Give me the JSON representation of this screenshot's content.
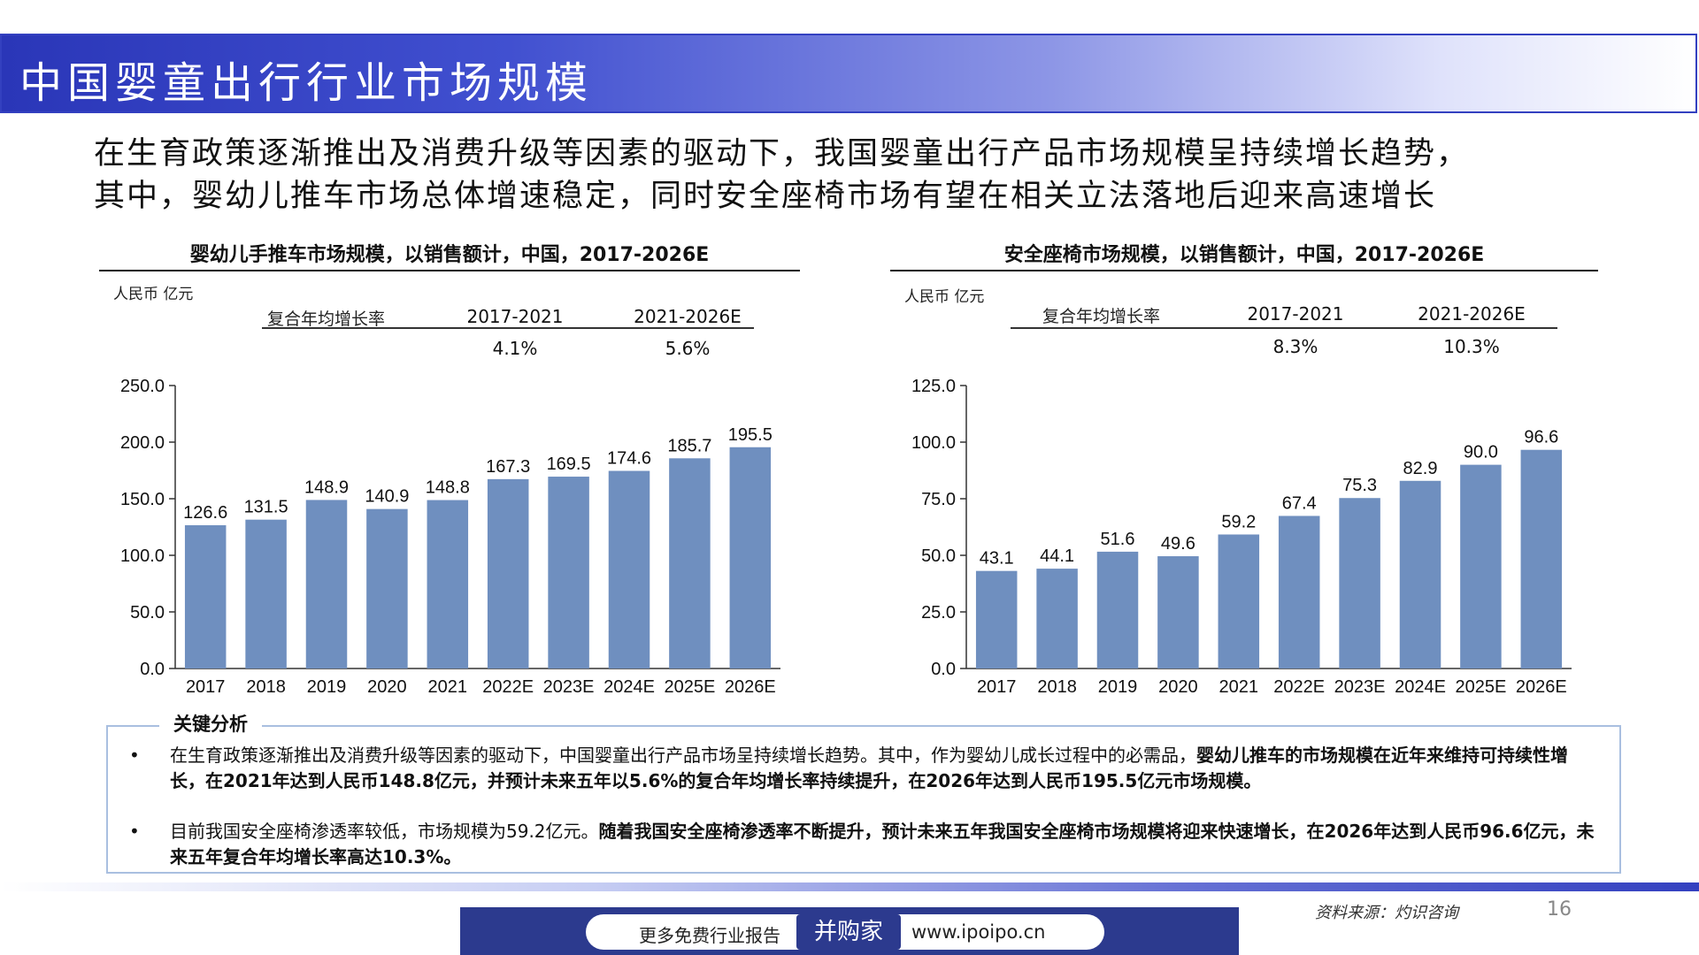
{
  "page": {
    "title": "中国婴童出行行业市场规模",
    "intro_lines": [
      "在生育政策逐渐推出及消费升级等因素的驱动下，我国婴童出行产品市场规模呈持续增长趋势，",
      "其中，婴幼儿推车市场总体增速稳定，同时安全座椅市场有望在相关立法落地后迎来高速增长"
    ],
    "source": "资料来源：灼识咨询",
    "page_number": "16"
  },
  "footer": {
    "left_text": "更多免费行业报告",
    "brand": "并购家",
    "url": "www.ipoipo.cn"
  },
  "colors": {
    "bar": "#6f8fbf",
    "accent": "#3340c0"
  },
  "cagr_label": "复合年均增长率",
  "chart_data": [
    {
      "type": "bar",
      "title": "婴幼儿手推车市场规模，以销售额计，中国，2017-2026E",
      "unit": "人民币 亿元",
      "cagr": [
        {
          "period": "2017-2021",
          "value": "4.1%"
        },
        {
          "period": "2021-2026E",
          "value": "5.6%"
        }
      ],
      "categories": [
        "2017",
        "2018",
        "2019",
        "2020",
        "2021",
        "2022E",
        "2023E",
        "2024E",
        "2025E",
        "2026E"
      ],
      "values": [
        126.6,
        131.5,
        148.9,
        140.9,
        148.8,
        167.3,
        169.5,
        174.6,
        185.7,
        195.5
      ],
      "ylim": [
        0,
        250
      ],
      "yticks": [
        "0.0",
        "50.0",
        "100.0",
        "150.0",
        "200.0",
        "250.0"
      ]
    },
    {
      "type": "bar",
      "title": "安全座椅市场规模，以销售额计，中国，2017-2026E",
      "unit": "人民币 亿元",
      "cagr": [
        {
          "period": "2017-2021",
          "value": "8.3%"
        },
        {
          "period": "2021-2026E",
          "value": "10.3%"
        }
      ],
      "categories": [
        "2017",
        "2018",
        "2019",
        "2020",
        "2021",
        "2022E",
        "2023E",
        "2024E",
        "2025E",
        "2026E"
      ],
      "values": [
        43.1,
        44.1,
        51.6,
        49.6,
        59.2,
        67.4,
        75.3,
        82.9,
        90.0,
        96.6
      ],
      "ylim": [
        0,
        125
      ],
      "yticks": [
        "0.0",
        "25.0",
        "50.0",
        "75.0",
        "100.0",
        "125.0"
      ]
    }
  ],
  "analysis": {
    "title": "关键分析",
    "bullet": "•",
    "items": [
      {
        "normal": "在生育政策逐渐推出及消费升级等因素的驱动下，中国婴童出行产品市场呈持续增长趋势。其中，作为婴幼儿成长过程中的必需品，",
        "bold": "婴幼儿推车的市场规模在近年来维持可持续性增长，在2021年达到人民币148.8亿元，并预计未来五年以5.6%的复合年均增长率持续提升，在2026年达到人民币195.5亿元市场规模。"
      },
      {
        "normal": "目前我国安全座椅渗透率较低，市场规模为59.2亿元。",
        "bold": "随着我国安全座椅渗透率不断提升，预计未来五年我国安全座椅市场规模将迎来快速增长，在2026年达到人民币96.6亿元，未来五年复合年均增长率高达10.3%。"
      }
    ]
  }
}
